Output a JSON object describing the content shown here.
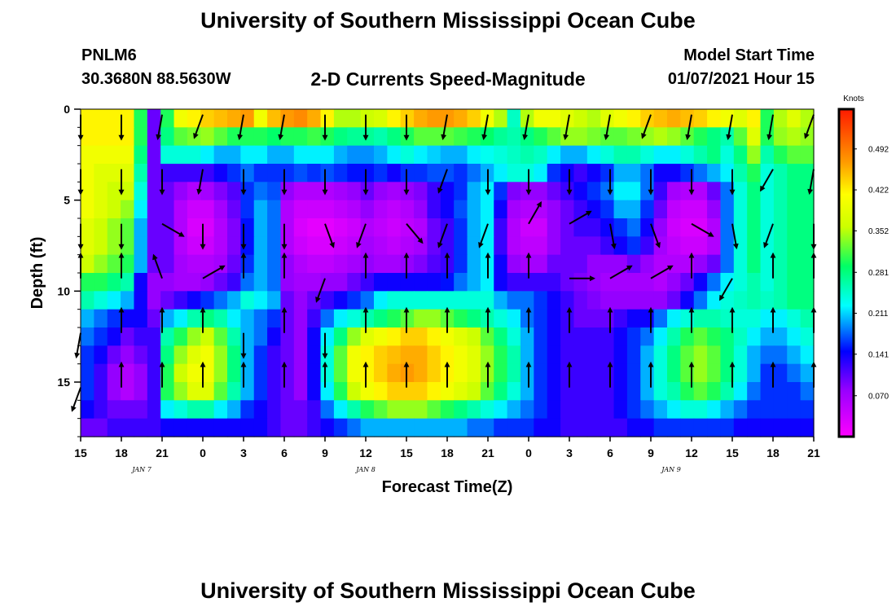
{
  "header": {
    "title_top": "University of Southern Mississippi Ocean Cube",
    "title_bottom": "University of Southern Mississippi Ocean Cube",
    "station_id": "PNLM6",
    "station_coords": "30.3680N 88.5630W",
    "plot_subtitle": "2-D Currents Speed-Magnitude",
    "model_start_label": "Model Start Time",
    "model_start_value": "01/07/2021 Hour 15"
  },
  "chart_data": {
    "type": "heatmap",
    "title": "2-D Currents Speed-Magnitude",
    "xlabel": "Forecast Time(Z)",
    "ylabel": "Depth (ft)",
    "x_range_hours": [
      0,
      54
    ],
    "y_range_ft": [
      0,
      18
    ],
    "x_tick_labels": [
      "15",
      "18",
      "21",
      "0",
      "3",
      "6",
      "9",
      "12",
      "15",
      "18",
      "21",
      "0",
      "3",
      "6",
      "9",
      "12",
      "15",
      "18",
      "21"
    ],
    "y_ticks": [
      0,
      5,
      10,
      15
    ],
    "day_labels": [
      {
        "text": "JAN 7",
        "hour": 4.5
      },
      {
        "text": "JAN 8",
        "hour": 21
      },
      {
        "text": "JAN 9",
        "hour": 43.5
      }
    ],
    "colorbar": {
      "title": "Knots",
      "range": [
        0,
        0.56
      ],
      "tick_labels": [
        "0.492",
        "0.422",
        "0.352",
        "0.281",
        "0.211",
        "0.141",
        "0.070"
      ],
      "tick_values": [
        0.492,
        0.422,
        0.352,
        0.281,
        0.211,
        0.141,
        0.07
      ]
    },
    "speed_rows_depth_ft": [
      0,
      1,
      2,
      3,
      4,
      5,
      6,
      7,
      8,
      9,
      10,
      11,
      12,
      13,
      14,
      15,
      16,
      17
    ],
    "speed_knots": [
      [
        0.42,
        0.42,
        0.42,
        0.42,
        0.3,
        0.1,
        0.3,
        0.4,
        0.42,
        0.44,
        0.45,
        0.46,
        0.47,
        0.4,
        0.45,
        0.47,
        0.48,
        0.46,
        0.42,
        0.35,
        0.35,
        0.36,
        0.37,
        0.42,
        0.44,
        0.46,
        0.47,
        0.47,
        0.46,
        0.44,
        0.4,
        0.35,
        0.25,
        0.35,
        0.4,
        0.4,
        0.38,
        0.36,
        0.35,
        0.38,
        0.4,
        0.42,
        0.44,
        0.45,
        0.46,
        0.45,
        0.44,
        0.42,
        0.4,
        0.38,
        0.42,
        0.3,
        0.35,
        0.38,
        0.35
      ],
      [
        0.42,
        0.42,
        0.42,
        0.42,
        0.3,
        0.1,
        0.28,
        0.32,
        0.33,
        0.34,
        0.32,
        0.3,
        0.3,
        0.3,
        0.29,
        0.3,
        0.3,
        0.31,
        0.3,
        0.28,
        0.27,
        0.27,
        0.26,
        0.28,
        0.3,
        0.32,
        0.32,
        0.32,
        0.31,
        0.3,
        0.29,
        0.27,
        0.26,
        0.28,
        0.3,
        0.32,
        0.34,
        0.34,
        0.33,
        0.32,
        0.32,
        0.33,
        0.34,
        0.35,
        0.34,
        0.32,
        0.3,
        0.28,
        0.26,
        0.32,
        0.38,
        0.3,
        0.34,
        0.35,
        0.34
      ],
      [
        0.4,
        0.4,
        0.4,
        0.4,
        0.28,
        0.1,
        0.24,
        0.24,
        0.24,
        0.22,
        0.2,
        0.2,
        0.22,
        0.22,
        0.2,
        0.2,
        0.22,
        0.22,
        0.22,
        0.2,
        0.19,
        0.19,
        0.2,
        0.22,
        0.24,
        0.22,
        0.21,
        0.2,
        0.2,
        0.22,
        0.23,
        0.24,
        0.25,
        0.26,
        0.25,
        0.22,
        0.2,
        0.2,
        0.22,
        0.24,
        0.26,
        0.26,
        0.24,
        0.22,
        0.22,
        0.24,
        0.26,
        0.28,
        0.24,
        0.28,
        0.34,
        0.26,
        0.3,
        0.32,
        0.32
      ],
      [
        0.4,
        0.38,
        0.38,
        0.38,
        0.26,
        0.1,
        0.12,
        0.12,
        0.12,
        0.12,
        0.14,
        0.16,
        0.18,
        0.16,
        0.16,
        0.16,
        0.17,
        0.16,
        0.17,
        0.16,
        0.15,
        0.15,
        0.16,
        0.14,
        0.16,
        0.16,
        0.17,
        0.17,
        0.16,
        0.18,
        0.2,
        0.22,
        0.24,
        0.24,
        0.22,
        0.16,
        0.14,
        0.12,
        0.14,
        0.16,
        0.2,
        0.2,
        0.18,
        0.14,
        0.14,
        0.16,
        0.18,
        0.2,
        0.22,
        0.26,
        0.3,
        0.24,
        0.26,
        0.28,
        0.28
      ],
      [
        0.4,
        0.38,
        0.36,
        0.36,
        0.24,
        0.1,
        0.1,
        0.08,
        0.06,
        0.07,
        0.09,
        0.11,
        0.16,
        0.18,
        0.17,
        0.08,
        0.06,
        0.06,
        0.06,
        0.07,
        0.08,
        0.1,
        0.08,
        0.07,
        0.08,
        0.09,
        0.12,
        0.14,
        0.16,
        0.2,
        0.22,
        0.16,
        0.09,
        0.08,
        0.08,
        0.1,
        0.12,
        0.14,
        0.16,
        0.18,
        0.22,
        0.22,
        0.18,
        0.12,
        0.07,
        0.06,
        0.06,
        0.1,
        0.18,
        0.24,
        0.28,
        0.24,
        0.26,
        0.28,
        0.28
      ],
      [
        0.4,
        0.38,
        0.36,
        0.34,
        0.22,
        0.1,
        0.1,
        0.06,
        0.04,
        0.04,
        0.07,
        0.1,
        0.16,
        0.2,
        0.18,
        0.06,
        0.04,
        0.04,
        0.04,
        0.05,
        0.06,
        0.08,
        0.06,
        0.05,
        0.06,
        0.08,
        0.12,
        0.14,
        0.17,
        0.2,
        0.22,
        0.14,
        0.07,
        0.06,
        0.06,
        0.08,
        0.1,
        0.12,
        0.14,
        0.16,
        0.2,
        0.2,
        0.16,
        0.1,
        0.05,
        0.04,
        0.04,
        0.08,
        0.18,
        0.24,
        0.28,
        0.24,
        0.26,
        0.28,
        0.28
      ],
      [
        0.38,
        0.36,
        0.34,
        0.32,
        0.2,
        0.1,
        0.1,
        0.06,
        0.03,
        0.03,
        0.06,
        0.09,
        0.15,
        0.2,
        0.18,
        0.06,
        0.03,
        0.02,
        0.02,
        0.03,
        0.04,
        0.06,
        0.05,
        0.04,
        0.05,
        0.06,
        0.1,
        0.12,
        0.16,
        0.2,
        0.22,
        0.12,
        0.06,
        0.04,
        0.04,
        0.08,
        0.1,
        0.12,
        0.12,
        0.14,
        0.16,
        0.18,
        0.14,
        0.08,
        0.04,
        0.03,
        0.03,
        0.06,
        0.18,
        0.24,
        0.28,
        0.24,
        0.26,
        0.28,
        0.28
      ],
      [
        0.38,
        0.36,
        0.34,
        0.32,
        0.2,
        0.1,
        0.1,
        0.06,
        0.04,
        0.04,
        0.06,
        0.09,
        0.15,
        0.2,
        0.18,
        0.06,
        0.04,
        0.03,
        0.03,
        0.04,
        0.05,
        0.07,
        0.06,
        0.05,
        0.06,
        0.07,
        0.1,
        0.12,
        0.16,
        0.2,
        0.22,
        0.12,
        0.06,
        0.05,
        0.05,
        0.08,
        0.1,
        0.1,
        0.1,
        0.12,
        0.14,
        0.16,
        0.12,
        0.07,
        0.05,
        0.04,
        0.04,
        0.06,
        0.18,
        0.24,
        0.28,
        0.24,
        0.26,
        0.28,
        0.28
      ],
      [
        0.36,
        0.34,
        0.32,
        0.3,
        0.2,
        0.1,
        0.1,
        0.07,
        0.06,
        0.06,
        0.07,
        0.1,
        0.16,
        0.2,
        0.18,
        0.08,
        0.06,
        0.05,
        0.05,
        0.06,
        0.07,
        0.08,
        0.07,
        0.07,
        0.08,
        0.09,
        0.11,
        0.12,
        0.16,
        0.2,
        0.22,
        0.14,
        0.08,
        0.07,
        0.07,
        0.1,
        0.1,
        0.1,
        0.08,
        0.08,
        0.08,
        0.1,
        0.08,
        0.06,
        0.06,
        0.06,
        0.08,
        0.1,
        0.18,
        0.24,
        0.28,
        0.24,
        0.26,
        0.28,
        0.28
      ],
      [
        0.3,
        0.3,
        0.28,
        0.26,
        0.14,
        0.08,
        0.08,
        0.07,
        0.07,
        0.08,
        0.1,
        0.12,
        0.18,
        0.2,
        0.18,
        0.08,
        0.07,
        0.07,
        0.08,
        0.08,
        0.1,
        0.12,
        0.14,
        0.14,
        0.14,
        0.14,
        0.14,
        0.15,
        0.18,
        0.2,
        0.22,
        0.14,
        0.12,
        0.12,
        0.12,
        0.12,
        0.1,
        0.09,
        0.08,
        0.07,
        0.07,
        0.07,
        0.07,
        0.06,
        0.08,
        0.1,
        0.14,
        0.18,
        0.22,
        0.24,
        0.26,
        0.24,
        0.26,
        0.28,
        0.28
      ],
      [
        0.26,
        0.24,
        0.22,
        0.2,
        0.14,
        0.08,
        0.1,
        0.12,
        0.14,
        0.16,
        0.18,
        0.2,
        0.24,
        0.22,
        0.2,
        0.1,
        0.08,
        0.1,
        0.12,
        0.14,
        0.16,
        0.18,
        0.22,
        0.24,
        0.24,
        0.24,
        0.24,
        0.24,
        0.24,
        0.24,
        0.24,
        0.2,
        0.18,
        0.18,
        0.16,
        0.14,
        0.12,
        0.1,
        0.09,
        0.08,
        0.08,
        0.08,
        0.08,
        0.08,
        0.1,
        0.14,
        0.18,
        0.22,
        0.24,
        0.25,
        0.26,
        0.25,
        0.26,
        0.28,
        0.28
      ],
      [
        0.2,
        0.18,
        0.16,
        0.14,
        0.14,
        0.1,
        0.2,
        0.22,
        0.26,
        0.28,
        0.26,
        0.22,
        0.2,
        0.18,
        0.16,
        0.1,
        0.08,
        0.12,
        0.18,
        0.22,
        0.24,
        0.26,
        0.28,
        0.3,
        0.32,
        0.34,
        0.34,
        0.32,
        0.3,
        0.28,
        0.26,
        0.24,
        0.22,
        0.18,
        0.16,
        0.14,
        0.12,
        0.1,
        0.1,
        0.1,
        0.12,
        0.14,
        0.14,
        0.18,
        0.22,
        0.24,
        0.26,
        0.26,
        0.25,
        0.24,
        0.24,
        0.22,
        0.22,
        0.24,
        0.26
      ],
      [
        0.18,
        0.16,
        0.14,
        0.1,
        0.12,
        0.12,
        0.26,
        0.3,
        0.34,
        0.36,
        0.32,
        0.26,
        0.2,
        0.18,
        0.14,
        0.1,
        0.08,
        0.14,
        0.22,
        0.28,
        0.34,
        0.38,
        0.4,
        0.42,
        0.44,
        0.44,
        0.42,
        0.4,
        0.38,
        0.36,
        0.32,
        0.28,
        0.24,
        0.2,
        0.16,
        0.14,
        0.12,
        0.12,
        0.12,
        0.12,
        0.14,
        0.16,
        0.18,
        0.22,
        0.26,
        0.3,
        0.32,
        0.3,
        0.28,
        0.25,
        0.22,
        0.2,
        0.2,
        0.22,
        0.24
      ],
      [
        0.16,
        0.14,
        0.1,
        0.08,
        0.1,
        0.12,
        0.28,
        0.34,
        0.38,
        0.4,
        0.34,
        0.28,
        0.2,
        0.16,
        0.12,
        0.1,
        0.08,
        0.14,
        0.24,
        0.32,
        0.4,
        0.42,
        0.44,
        0.45,
        0.46,
        0.46,
        0.44,
        0.42,
        0.4,
        0.38,
        0.34,
        0.3,
        0.26,
        0.2,
        0.16,
        0.14,
        0.12,
        0.12,
        0.12,
        0.12,
        0.14,
        0.16,
        0.2,
        0.24,
        0.28,
        0.32,
        0.34,
        0.32,
        0.28,
        0.24,
        0.2,
        0.18,
        0.18,
        0.2,
        0.22
      ],
      [
        0.16,
        0.12,
        0.08,
        0.06,
        0.08,
        0.12,
        0.3,
        0.36,
        0.4,
        0.4,
        0.34,
        0.28,
        0.2,
        0.16,
        0.12,
        0.1,
        0.08,
        0.14,
        0.24,
        0.32,
        0.4,
        0.42,
        0.44,
        0.46,
        0.47,
        0.46,
        0.44,
        0.42,
        0.4,
        0.38,
        0.34,
        0.3,
        0.26,
        0.2,
        0.16,
        0.14,
        0.12,
        0.12,
        0.12,
        0.12,
        0.14,
        0.16,
        0.2,
        0.24,
        0.28,
        0.32,
        0.34,
        0.32,
        0.28,
        0.24,
        0.2,
        0.16,
        0.16,
        0.18,
        0.2
      ],
      [
        0.16,
        0.12,
        0.08,
        0.06,
        0.08,
        0.12,
        0.3,
        0.34,
        0.38,
        0.38,
        0.32,
        0.26,
        0.2,
        0.16,
        0.12,
        0.1,
        0.08,
        0.14,
        0.22,
        0.3,
        0.36,
        0.4,
        0.42,
        0.44,
        0.44,
        0.44,
        0.42,
        0.4,
        0.38,
        0.36,
        0.32,
        0.28,
        0.24,
        0.2,
        0.16,
        0.14,
        0.12,
        0.12,
        0.12,
        0.12,
        0.14,
        0.16,
        0.2,
        0.24,
        0.26,
        0.3,
        0.32,
        0.3,
        0.26,
        0.22,
        0.18,
        0.16,
        0.16,
        0.16,
        0.18
      ],
      [
        0.14,
        0.12,
        0.1,
        0.1,
        0.1,
        0.12,
        0.22,
        0.24,
        0.26,
        0.26,
        0.22,
        0.2,
        0.16,
        0.14,
        0.12,
        0.1,
        0.1,
        0.12,
        0.18,
        0.22,
        0.26,
        0.3,
        0.32,
        0.34,
        0.34,
        0.34,
        0.32,
        0.3,
        0.28,
        0.26,
        0.24,
        0.22,
        0.2,
        0.18,
        0.16,
        0.14,
        0.12,
        0.12,
        0.12,
        0.12,
        0.14,
        0.16,
        0.18,
        0.2,
        0.22,
        0.24,
        0.24,
        0.22,
        0.2,
        0.18,
        0.16,
        0.16,
        0.16,
        0.16,
        0.16
      ],
      [
        0.1,
        0.1,
        0.12,
        0.12,
        0.12,
        0.12,
        0.14,
        0.14,
        0.14,
        0.14,
        0.14,
        0.14,
        0.14,
        0.14,
        0.12,
        0.1,
        0.1,
        0.12,
        0.14,
        0.16,
        0.18,
        0.2,
        0.2,
        0.2,
        0.2,
        0.2,
        0.2,
        0.2,
        0.2,
        0.18,
        0.18,
        0.16,
        0.16,
        0.16,
        0.14,
        0.14,
        0.12,
        0.12,
        0.12,
        0.12,
        0.12,
        0.14,
        0.14,
        0.16,
        0.16,
        0.16,
        0.16,
        0.16,
        0.16,
        0.14,
        0.14,
        0.14,
        0.14,
        0.14,
        0.14
      ]
    ],
    "vector_columns_hour": [
      0,
      3,
      6,
      9,
      12,
      15,
      18,
      21,
      24,
      27,
      30,
      33,
      36,
      39,
      42,
      45,
      48,
      51,
      54
    ],
    "vector_rows_depth_ft": [
      0.3,
      3.3,
      6.3,
      9.3,
      12.3,
      15.3
    ],
    "vectors_deg": [
      [
        180,
        180,
        190,
        200,
        190,
        190,
        180,
        180,
        180,
        190,
        190,
        190,
        190,
        190,
        200,
        190,
        190,
        190,
        200
      ],
      [
        180,
        180,
        180,
        190,
        180,
        180,
        180,
        180,
        180,
        200,
        180,
        180,
        180,
        180,
        180,
        180,
        180,
        210,
        190
      ],
      [
        180,
        180,
        120,
        180,
        180,
        180,
        160,
        200,
        140,
        200,
        200,
        30,
        60,
        170,
        160,
        120,
        170,
        200,
        180
      ],
      [
        0,
        0,
        340,
        60,
        0,
        0,
        200,
        0,
        0,
        0,
        0,
        0,
        90,
        60,
        60,
        0,
        210,
        0,
        0
      ],
      [
        190,
        0,
        0,
        0,
        180,
        0,
        180,
        0,
        0,
        0,
        0,
        0,
        0,
        0,
        0,
        0,
        0,
        0,
        0
      ],
      [
        200,
        0,
        0,
        0,
        0,
        0,
        0,
        0,
        0,
        0,
        0,
        0,
        0,
        0,
        0,
        0,
        0,
        0,
        0
      ]
    ]
  }
}
